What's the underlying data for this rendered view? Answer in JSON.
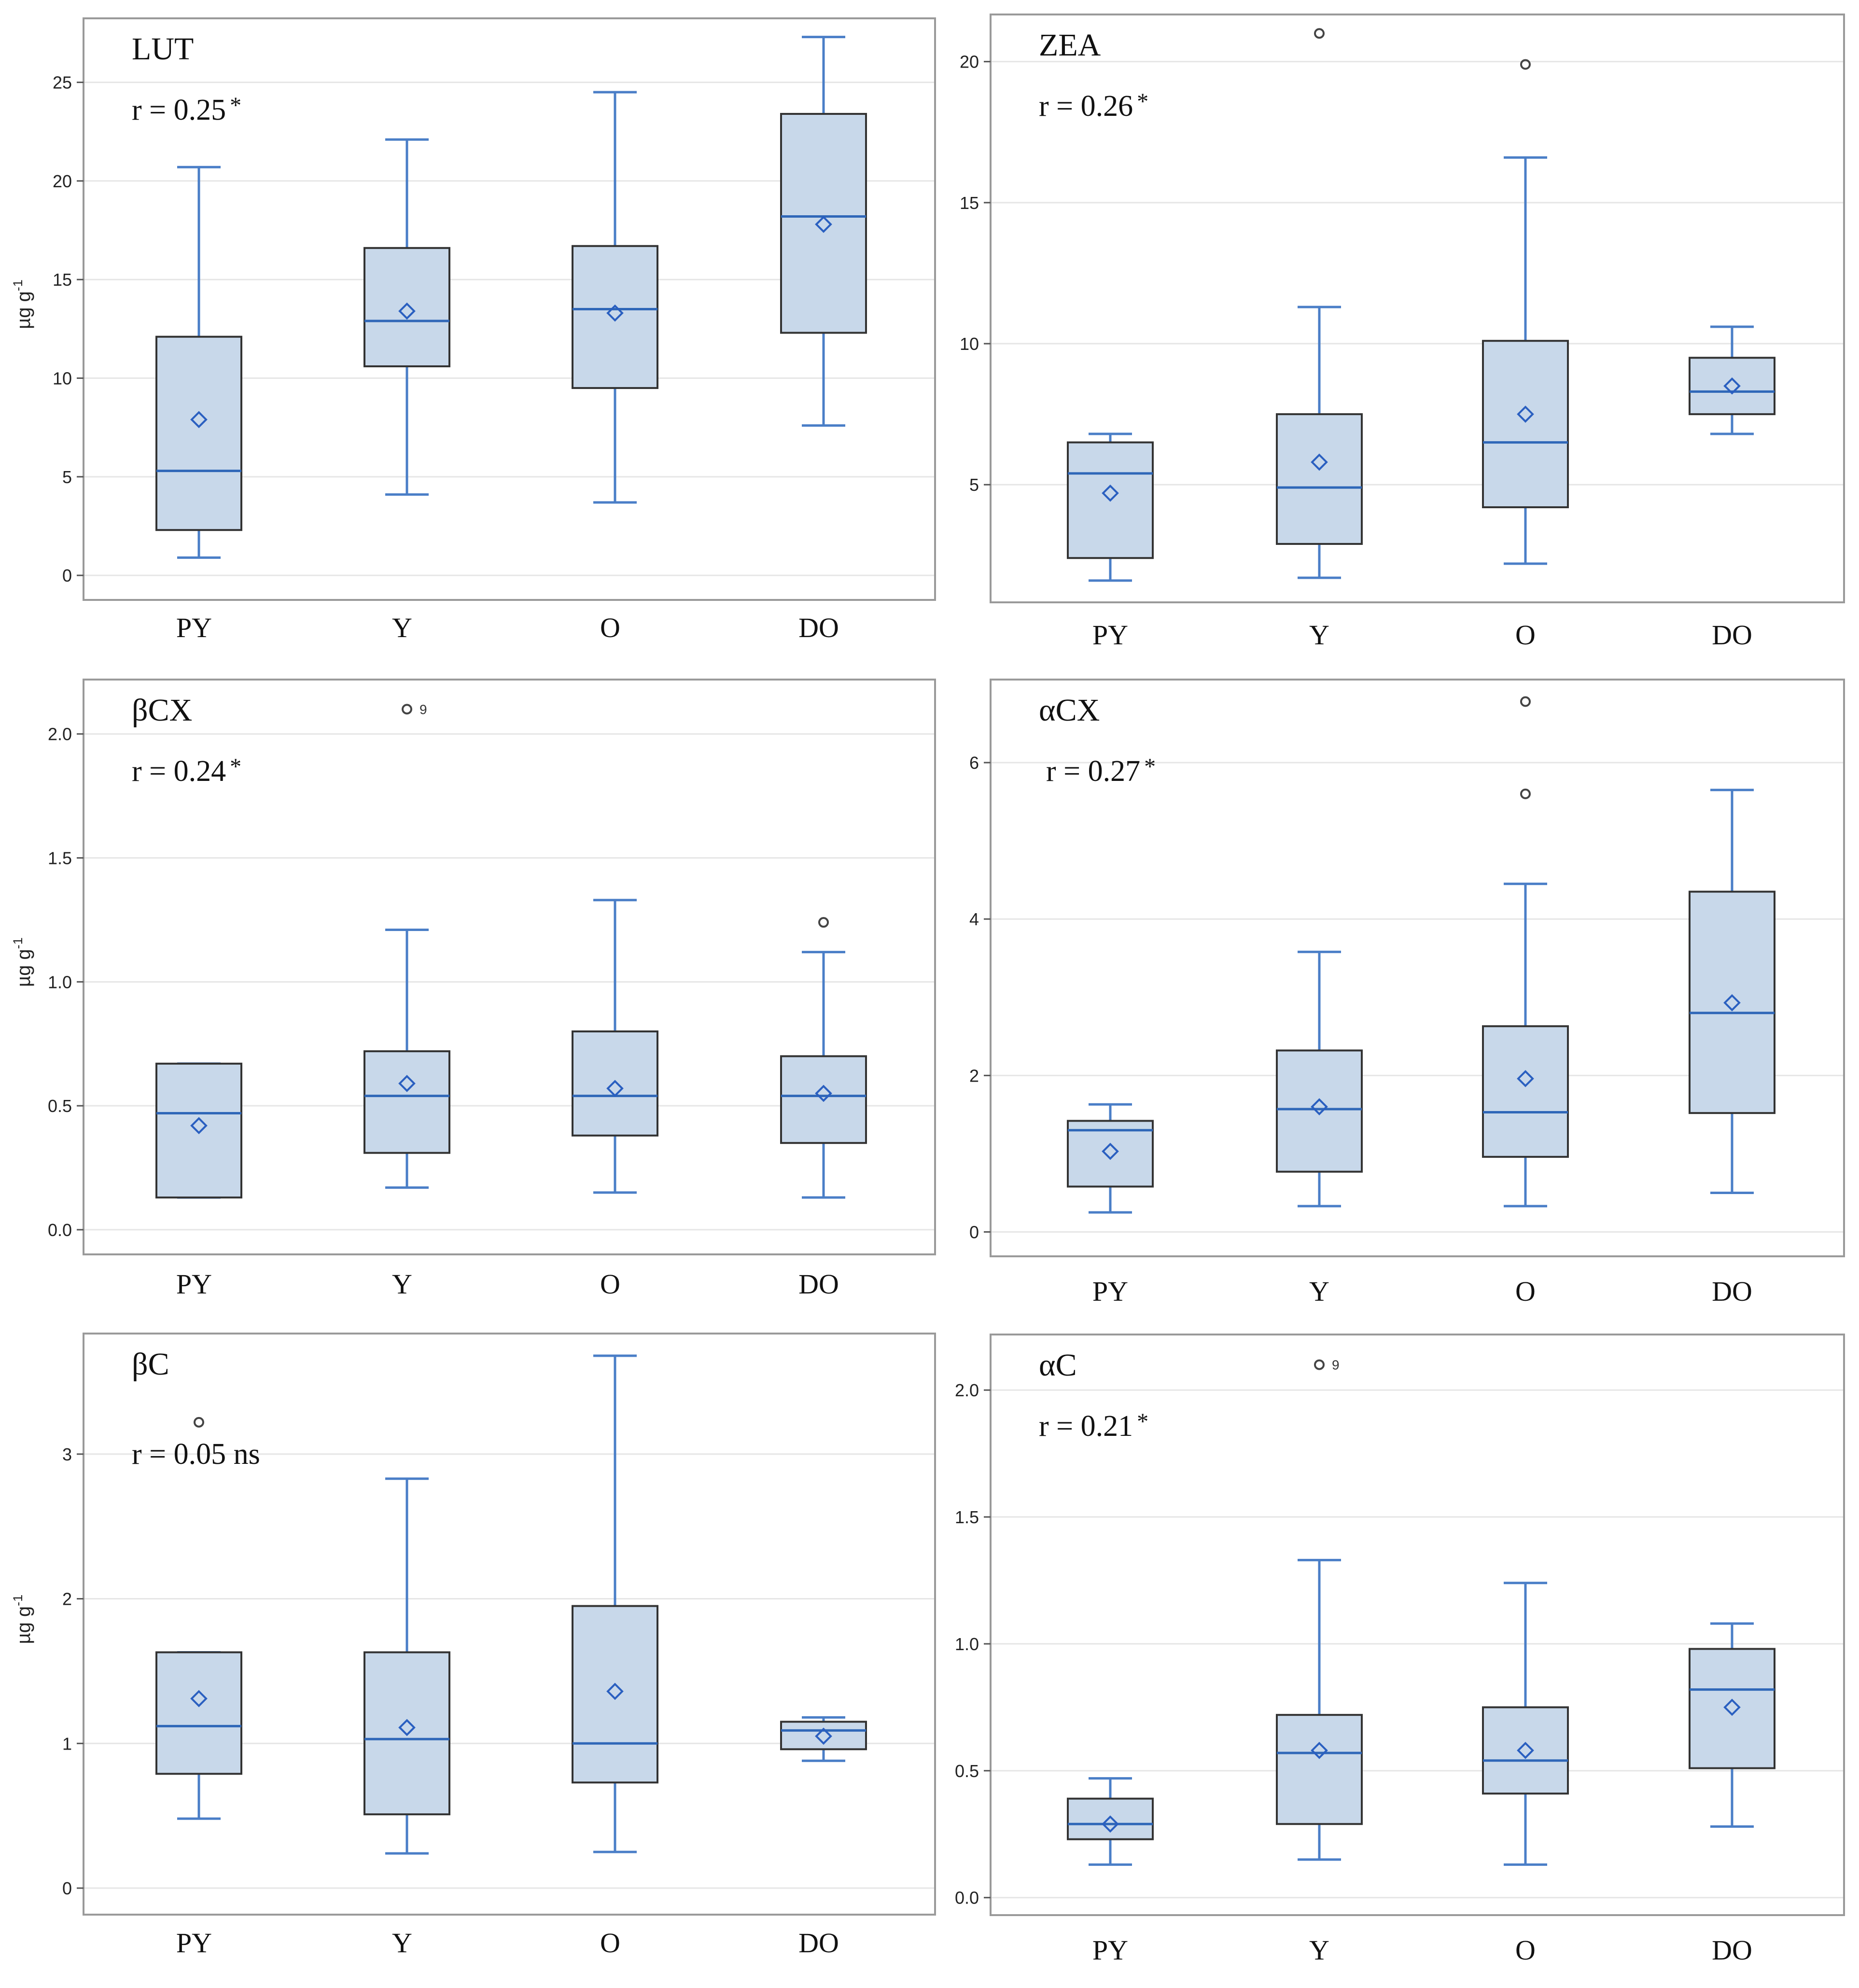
{
  "figure": {
    "y_axis_label": "µg g",
    "y_axis_label_exponent": "-1",
    "star": "*"
  },
  "colors": {
    "box_fill": "#c8d8ea",
    "box_stroke": "#333333",
    "whisker": "#4a7ec7",
    "median": "#2f67b8",
    "mean_marker": "#2a5fc0",
    "outlier": "#444444",
    "grid": "#e6e6e6",
    "frame": "#9a9a9a"
  },
  "chart_data": [
    {
      "type": "box",
      "title": "LUT",
      "annotation": "r = 0.25",
      "annotation_mark": "*",
      "ylabel": "µg g-1",
      "categories": [
        "PY",
        "Y",
        "O",
        "DO"
      ],
      "ylim": [
        -1,
        28
      ],
      "yticks": [
        0,
        5,
        10,
        15,
        20,
        25
      ],
      "tick_labels": [
        "0",
        "5",
        "10",
        "15",
        "20",
        "25"
      ],
      "boxes": [
        {
          "min": 0.9,
          "q1": 2.3,
          "median": 5.3,
          "q3": 12.1,
          "max": 20.7,
          "mean": 7.9,
          "outliers": []
        },
        {
          "min": 4.1,
          "q1": 10.6,
          "median": 12.9,
          "q3": 16.6,
          "max": 22.1,
          "mean": 13.4,
          "outliers": []
        },
        {
          "min": 3.7,
          "q1": 9.5,
          "median": 13.5,
          "q3": 16.7,
          "max": 24.5,
          "mean": 13.3,
          "outliers": []
        },
        {
          "min": 7.6,
          "q1": 12.3,
          "median": 18.2,
          "q3": 23.4,
          "max": 27.3,
          "mean": 17.8,
          "outliers": []
        }
      ]
    },
    {
      "type": "box",
      "title": "ZEA",
      "annotation": "r = 0.26",
      "annotation_mark": "*",
      "ylabel": "",
      "categories": [
        "PY",
        "Y",
        "O",
        "DO"
      ],
      "ylim": [
        1.0,
        21.5
      ],
      "yticks": [
        5,
        10,
        15,
        20
      ],
      "tick_labels": [
        "5",
        "10",
        "15",
        "20"
      ],
      "boxes": [
        {
          "min": 1.6,
          "q1": 2.4,
          "median": 5.4,
          "q3": 6.5,
          "max": 6.8,
          "mean": 4.7,
          "outliers": []
        },
        {
          "min": 1.7,
          "q1": 2.9,
          "median": 4.9,
          "q3": 7.5,
          "max": 11.3,
          "mean": 5.8,
          "outliers": [
            21.0
          ]
        },
        {
          "min": 2.2,
          "q1": 4.2,
          "median": 6.5,
          "q3": 10.1,
          "max": 16.6,
          "mean": 7.5,
          "outliers": [
            19.9
          ]
        },
        {
          "min": 6.8,
          "q1": 7.5,
          "median": 8.3,
          "q3": 9.5,
          "max": 10.6,
          "mean": 8.5,
          "outliers": []
        }
      ]
    },
    {
      "type": "box",
      "title": "βCX",
      "annotation": "r = 0.24",
      "annotation_mark": "*",
      "ylabel": "µg g-1",
      "categories": [
        "PY",
        "Y",
        "O",
        "DO"
      ],
      "ylim": [
        -0.08,
        2.2
      ],
      "yticks": [
        0.0,
        0.5,
        1.0,
        1.5,
        2.0
      ],
      "tick_labels": [
        "0.0",
        "0.5",
        "1.0",
        "1.5",
        "2.0"
      ],
      "boxes": [
        {
          "min": 0.13,
          "q1": 0.13,
          "median": 0.47,
          "q3": 0.67,
          "max": 0.67,
          "mean": 0.42,
          "outliers": []
        },
        {
          "min": 0.17,
          "q1": 0.31,
          "median": 0.54,
          "q3": 0.72,
          "max": 1.21,
          "mean": 0.59,
          "outliers": [
            2.1
          ]
        },
        {
          "min": 0.15,
          "q1": 0.38,
          "median": 0.54,
          "q3": 0.8,
          "max": 1.33,
          "mean": 0.57,
          "outliers": []
        },
        {
          "min": 0.13,
          "q1": 0.35,
          "median": 0.54,
          "q3": 0.7,
          "max": 1.12,
          "mean": 0.55,
          "outliers": [
            1.24
          ]
        }
      ],
      "outlier_label": {
        "category": "Y",
        "text": "9"
      }
    },
    {
      "type": "box",
      "title": "αCX",
      "annotation": "r = 0.27",
      "annotation_mark": "*",
      "ylabel": "",
      "categories": [
        "PY",
        "Y",
        "O",
        "DO"
      ],
      "ylim": [
        -0.25,
        7.0
      ],
      "yticks": [
        0,
        2,
        4,
        6
      ],
      "tick_labels": [
        "0",
        "2",
        "4",
        "6"
      ],
      "boxes": [
        {
          "min": 0.25,
          "q1": 0.58,
          "median": 1.3,
          "q3": 1.42,
          "max": 1.63,
          "mean": 1.03,
          "outliers": []
        },
        {
          "min": 0.33,
          "q1": 0.77,
          "median": 1.57,
          "q3": 2.32,
          "max": 3.58,
          "mean": 1.6,
          "outliers": []
        },
        {
          "min": 0.33,
          "q1": 0.96,
          "median": 1.53,
          "q3": 2.63,
          "max": 4.45,
          "mean": 1.96,
          "outliers": [
            6.78,
            5.6
          ]
        },
        {
          "min": 0.5,
          "q1": 1.52,
          "median": 2.8,
          "q3": 4.35,
          "max": 5.65,
          "mean": 2.93,
          "outliers": []
        }
      ]
    },
    {
      "type": "box",
      "title": "βC",
      "annotation": "r = 0.05 ns",
      "annotation_mark": "",
      "ylabel": "µg g-1",
      "categories": [
        "PY",
        "Y",
        "O",
        "DO"
      ],
      "ylim": [
        -0.15,
        3.8
      ],
      "yticks": [
        0,
        1,
        2,
        3
      ],
      "tick_labels": [
        "0",
        "1",
        "2",
        "3"
      ],
      "boxes": [
        {
          "min": 0.48,
          "q1": 0.79,
          "median": 1.12,
          "q3": 1.63,
          "max": 1.63,
          "mean": 1.31,
          "outliers": [
            3.22
          ]
        },
        {
          "min": 0.24,
          "q1": 0.51,
          "median": 1.03,
          "q3": 1.63,
          "max": 2.83,
          "mean": 1.11,
          "outliers": []
        },
        {
          "min": 0.25,
          "q1": 0.73,
          "median": 1.0,
          "q3": 1.95,
          "max": 3.68,
          "mean": 1.36,
          "outliers": []
        },
        {
          "min": 0.88,
          "q1": 0.96,
          "median": 1.09,
          "q3": 1.15,
          "max": 1.18,
          "mean": 1.05,
          "outliers": []
        }
      ]
    },
    {
      "type": "box",
      "title": "αC",
      "annotation": "r = 0.21",
      "annotation_mark": "*",
      "ylabel": "",
      "categories": [
        "PY",
        "Y",
        "O",
        "DO"
      ],
      "ylim": [
        -0.05,
        2.2
      ],
      "yticks": [
        0.0,
        0.5,
        1.0,
        1.5,
        2.0
      ],
      "tick_labels": [
        "0.0",
        "0.5",
        "1.0",
        "1.5",
        "2.0"
      ],
      "boxes": [
        {
          "min": 0.13,
          "q1": 0.23,
          "median": 0.29,
          "q3": 0.39,
          "max": 0.47,
          "mean": 0.29,
          "outliers": []
        },
        {
          "min": 0.15,
          "q1": 0.29,
          "median": 0.57,
          "q3": 0.72,
          "max": 1.33,
          "mean": 0.58,
          "outliers": [
            2.1
          ]
        },
        {
          "min": 0.13,
          "q1": 0.41,
          "median": 0.54,
          "q3": 0.75,
          "max": 1.24,
          "mean": 0.58,
          "outliers": []
        },
        {
          "min": 0.28,
          "q1": 0.51,
          "median": 0.82,
          "q3": 0.98,
          "max": 1.08,
          "mean": 0.75,
          "outliers": []
        }
      ],
      "outlier_label": {
        "category": "Y",
        "text": "9"
      }
    }
  ]
}
